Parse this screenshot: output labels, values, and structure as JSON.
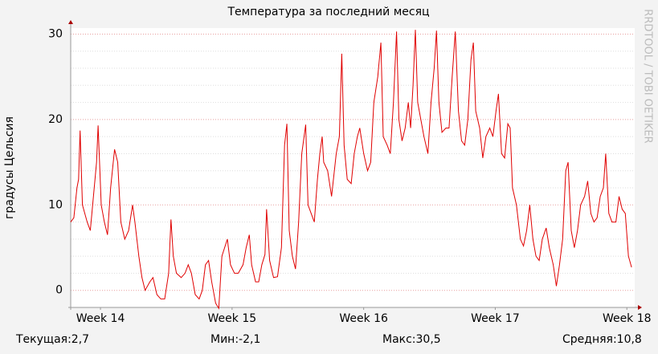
{
  "chart_data": {
    "type": "line",
    "title": "Температура за последний месяц",
    "y_label": "градусы Цельсия",
    "watermark": "RRDTOOL / TOBI OETIKER",
    "annotations": [
      "Текущая:2,7",
      "Мин:-2,1",
      "Макс:30,5",
      "Средняя:10,8"
    ],
    "x": [
      0,
      4,
      8,
      10,
      12,
      15,
      21,
      25,
      29,
      33,
      35,
      39,
      43,
      47,
      51,
      56,
      60,
      64,
      69,
      74,
      79,
      82,
      87,
      91,
      95,
      101,
      105,
      110,
      115,
      120,
      125,
      128,
      131,
      135,
      141,
      146,
      150,
      154,
      159,
      164,
      168,
      172,
      176,
      180,
      185,
      189,
      193,
      200,
      204,
      209,
      214,
      220,
      224,
      228,
      231,
      236,
      240,
      244,
      248,
      250,
      254,
      259,
      264,
      269,
      273,
      276,
      279,
      283,
      287,
      291,
      295,
      300,
      303,
      307,
      311,
      315,
      318,
      321,
      323,
      328,
      333,
      339,
      343,
      346,
      349,
      353,
      358,
      362,
      366,
      369,
      374,
      379,
      383,
      387,
      392,
      396,
      399,
      404,
      408,
      412,
      416,
      419,
      423,
      427,
      431,
      434,
      437,
      440,
      443,
      447,
      451,
      456,
      460,
      464,
      467,
      470,
      474,
      479,
      483,
      487,
      491,
      495,
      499,
      503,
      507,
      511,
      514,
      517,
      522,
      526,
      530,
      535,
      539,
      543,
      546,
      550,
      554,
      558,
      561,
      564,
      569,
      574,
      578,
      582,
      586,
      590,
      594,
      598,
      602,
      607,
      611,
      616,
      620,
      624,
      628,
      632,
      635,
      639,
      643,
      647,
      651,
      656,
      660,
      664,
      668,
      672,
      676,
      680,
      683,
      687,
      691,
      696,
      700,
      704,
      708,
      712,
      716
    ],
    "series": [
      {
        "name": "Температура",
        "color": "#e00000",
        "values": [
          8,
          8.5,
          12,
          13,
          18.7,
          10,
          8,
          7,
          11,
          15,
          19.3,
          10,
          8,
          6.5,
          12,
          16.5,
          15,
          8,
          6,
          7,
          10,
          8,
          4,
          1.5,
          0,
          1,
          1.5,
          -0.5,
          -1,
          -1,
          2,
          8.3,
          4,
          2,
          1.5,
          2,
          3,
          2,
          -0.5,
          -1,
          0,
          3,
          3.5,
          1,
          -1.5,
          -2.1,
          4,
          6,
          3,
          2,
          2,
          3,
          5,
          6.5,
          3,
          1,
          1,
          3,
          4.2,
          9.5,
          3.5,
          1.5,
          1.6,
          5,
          17,
          19.5,
          7,
          4,
          2.5,
          8,
          16,
          19.4,
          10,
          9,
          8,
          13,
          16,
          18,
          15,
          14,
          11,
          16,
          18,
          27.7,
          17,
          13,
          12.5,
          16,
          18,
          19,
          16,
          14,
          15,
          22,
          25,
          29,
          18,
          17,
          16,
          22,
          30.3,
          20,
          17.5,
          19,
          22,
          19,
          24,
          30.5,
          22,
          20,
          18,
          16,
          22,
          26,
          30.4,
          22,
          18.5,
          19,
          19,
          25,
          30.3,
          21,
          17.5,
          17,
          20,
          27,
          29,
          21,
          19,
          15.5,
          18,
          19,
          18,
          21,
          23,
          16,
          15.5,
          19.5,
          19,
          12,
          10,
          6,
          5.2,
          7,
          10,
          6,
          4,
          3.5,
          6,
          7.3,
          5,
          3,
          0.5,
          3,
          6,
          14,
          15,
          7,
          5,
          7,
          10,
          11,
          12.8,
          9,
          8,
          8.5,
          11,
          12,
          16,
          9,
          8,
          8,
          11,
          9.5,
          9,
          4,
          2.7
        ]
      }
    ],
    "xlim": [
      0,
      720
    ],
    "xticks": [
      {
        "value": 38,
        "label": "Week 14"
      },
      {
        "value": 206,
        "label": "Week 15"
      },
      {
        "value": 374,
        "label": "Week 16"
      },
      {
        "value": 542,
        "label": "Week 17"
      },
      {
        "value": 710,
        "label": "Week 18"
      }
    ],
    "ylim": [
      -2,
      30.7
    ],
    "yticks": [
      0,
      10,
      20,
      30
    ],
    "yminor_ticks": [
      2,
      4,
      6,
      8,
      12,
      14,
      16,
      18,
      22,
      24,
      26,
      28
    ],
    "grid": true
  }
}
